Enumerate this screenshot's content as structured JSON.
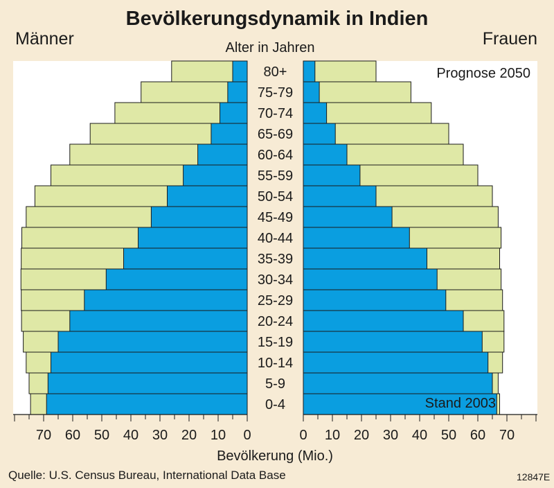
{
  "title": "Bevölkerungsdynamik in Indien",
  "label_men": "Männer",
  "label_women": "Frauen",
  "label_age": "Alter in Jahren",
  "source": "Quelle: U.S. Census Bureau, International Data Base",
  "code": "12847E",
  "colors": {
    "background": "#f7ebd5",
    "panel": "#ffffff",
    "bar_2003": "#0a9ee0",
    "bar_2050": "#dfe8a6",
    "outline": "#1a1a1a"
  },
  "chart_data": {
    "type": "bar",
    "subtype": "population-pyramid",
    "title": "Bevölkerungsdynamik in Indien",
    "xlabel": "Bevölkerung (Mio.)",
    "ylabel": "Alter in Jahren",
    "xlim": [
      0,
      80
    ],
    "ticks": [
      0,
      10,
      20,
      30,
      40,
      50,
      60,
      70
    ],
    "tick_labels_left": [
      "0",
      "10",
      "20",
      "30",
      "40",
      "50",
      "60",
      "70"
    ],
    "tick_labels_right": [
      "0",
      "10",
      "20",
      "30",
      "40",
      "50",
      "60",
      "70"
    ],
    "categories": [
      "80+",
      "75-79",
      "70-74",
      "65-69",
      "60-64",
      "55-59",
      "50-54",
      "45-49",
      "40-44",
      "35-39",
      "30-34",
      "25-29",
      "20-24",
      "15-19",
      "10-14",
      "5-9",
      "0-4"
    ],
    "label_2050": "Prognose 2050",
    "label_2003": "Stand 2003",
    "series": [
      {
        "name": "Stand 2003",
        "side": "Männer",
        "values": [
          5,
          6.7,
          9.4,
          12.4,
          17,
          22,
          27.5,
          33,
          37.5,
          42.5,
          48.5,
          56,
          61,
          65,
          67.5,
          68.5,
          69
        ]
      },
      {
        "name": "Prognose 2050",
        "side": "Männer",
        "values": [
          26,
          36.5,
          45.5,
          54,
          61,
          67.5,
          73,
          76,
          77.5,
          77.7,
          77.8,
          77.7,
          77.6,
          77,
          76,
          75,
          74.5
        ]
      },
      {
        "name": "Stand 2003",
        "side": "Frauen",
        "values": [
          4,
          5.5,
          8,
          11,
          15,
          19.5,
          25,
          30.5,
          36.5,
          42.5,
          46,
          49,
          55,
          61.5,
          63.5,
          65,
          66.5
        ]
      },
      {
        "name": "Prognose 2050",
        "side": "Frauen",
        "values": [
          25,
          37,
          44,
          50,
          55,
          60,
          65,
          67,
          68,
          67.5,
          68,
          68.5,
          69,
          69,
          68.5,
          67,
          67.5
        ]
      }
    ],
    "grid": false
  }
}
